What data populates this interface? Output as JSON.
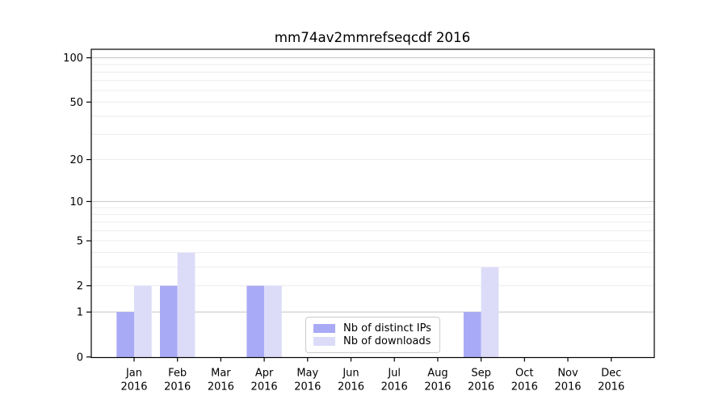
{
  "chart_data": {
    "type": "bar",
    "title": "mm74av2mmrefseqcdf 2016",
    "categories": [
      "Jan 2016",
      "Feb 2016",
      "Mar 2016",
      "Apr 2016",
      "May 2016",
      "Jun 2016",
      "Jul 2016",
      "Aug 2016",
      "Sep 2016",
      "Oct 2016",
      "Nov 2016",
      "Dec 2016"
    ],
    "series": [
      {
        "name": "Nb of distinct IPs",
        "color": "#a9aaf6",
        "values": [
          1,
          2,
          0,
          2,
          0,
          0,
          0,
          0,
          1,
          0,
          0,
          0
        ]
      },
      {
        "name": "Nb of downloads",
        "color": "#dcdcf9",
        "values": [
          2,
          4,
          0,
          2,
          0,
          0,
          0,
          0,
          3,
          0,
          0,
          0
        ]
      }
    ],
    "xlabel": "",
    "ylabel": "",
    "ylim": [
      0,
      100
    ],
    "yscale": "log1p",
    "y_tick_values": [
      0,
      1,
      2,
      5,
      10,
      20,
      50,
      100
    ],
    "y_major_gridlines": [
      1,
      10,
      100
    ],
    "y_minor_gridlines": [
      2,
      3,
      4,
      5,
      6,
      7,
      8,
      9,
      20,
      30,
      40,
      50,
      60,
      70,
      80,
      90
    ],
    "grid": true,
    "legend_position": "lower center",
    "colors": {
      "background": "#ffffff",
      "axis": "#000000",
      "text": "#000000",
      "major_grid": "#c4c4c4",
      "minor_grid": "#ececec",
      "legend_border": "#cbcbcb"
    }
  }
}
